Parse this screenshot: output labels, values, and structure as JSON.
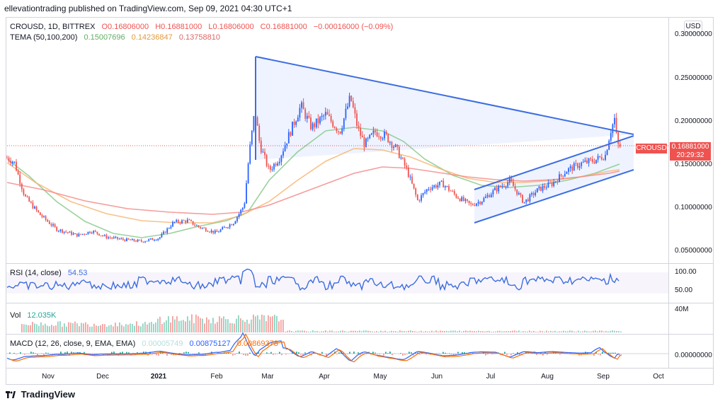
{
  "header": {
    "text": "ellevationtrading published on TradingView.com, Sep 09, 2021 04:30 UTC+1"
  },
  "main_pane": {
    "legend_line1": {
      "symbol": "CROUSD, 1D, BITTREX",
      "o": "O0.16806000",
      "h": "H0.16881000",
      "l": "L0.16806000",
      "c": "C0.16881000",
      "change": "−0.00016000 (−0.09%)"
    },
    "legend_line2": {
      "name": "TEMA (50,100,200)",
      "v1": "0.15007696",
      "v2": "0.14236847",
      "v3": "0.13758810"
    },
    "price_labels": [
      "0.30000000",
      "0.25000000",
      "0.20000000",
      "0.15000000",
      "0.10000000",
      "0.05000000"
    ],
    "currency_button": "USD",
    "symbol_tag": "CROUSD",
    "last_price": "0.16881000",
    "countdown": "20:29:32"
  },
  "rsi_pane": {
    "legend": {
      "name": "RSI (14, close)",
      "value": "54.53"
    },
    "scale": [
      "100.00",
      "50.00"
    ]
  },
  "vol_pane": {
    "legend": {
      "name": "Vol",
      "value": "12.035K"
    },
    "scale": [
      "40M"
    ]
  },
  "macd_pane": {
    "legend": {
      "name": "MACD (12, 26, close, 9, EMA, EMA)",
      "v1": "0.00005749",
      "v2": "0.00875127",
      "v3": "0.00869378"
    },
    "scale": [
      "0.00000000"
    ]
  },
  "time_axis": [
    "Nov",
    "Dec",
    "2021",
    "Feb",
    "Mar",
    "Apr",
    "May",
    "Jun",
    "Jul",
    "Aug",
    "Sep",
    "Oct"
  ],
  "footer": {
    "brand": "TradingView"
  },
  "colors": {
    "up": "#2962ff",
    "down": "#ef5350",
    "trend": "#3d6de0",
    "tema1": "#81c784",
    "tema2": "#f7b26a",
    "tema3": "#f48383",
    "rsi": "#3d6de0",
    "macd": "#2962ff",
    "signal": "#ff6d00",
    "vol_up": "#8fd3c2",
    "vol_down": "#f3a2a0"
  }
}
